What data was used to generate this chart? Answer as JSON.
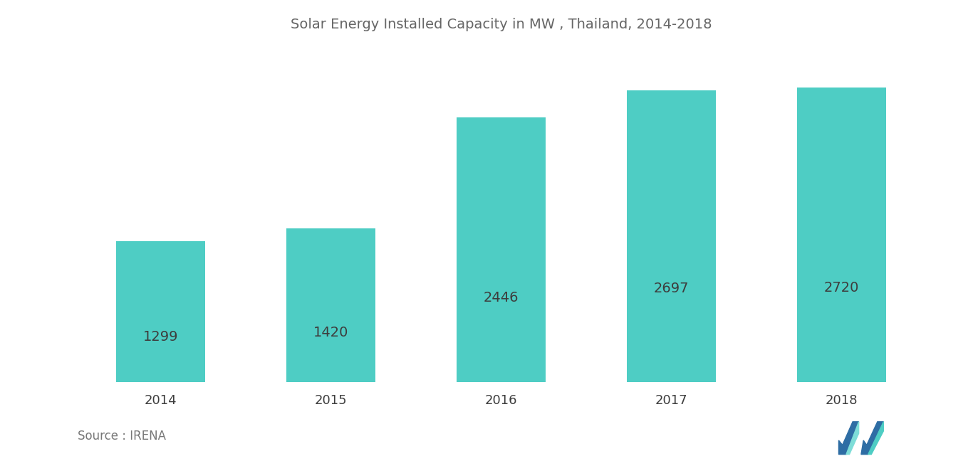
{
  "title": "Solar Energy Installed Capacity in MW , Thailand, 2014-2018",
  "categories": [
    "2014",
    "2015",
    "2016",
    "2017",
    "2018"
  ],
  "values": [
    1299,
    1420,
    2446,
    2697,
    2720
  ],
  "bar_color": "#4ECDC4",
  "label_color": "#3d3d3d",
  "title_color": "#666666",
  "background_color": "#ffffff",
  "source_text": "Source : IRENA",
  "bar_width": 0.52,
  "ylim": [
    0,
    3100
  ],
  "label_fontsize": 14,
  "title_fontsize": 14,
  "source_fontsize": 12,
  "xtick_fontsize": 13
}
